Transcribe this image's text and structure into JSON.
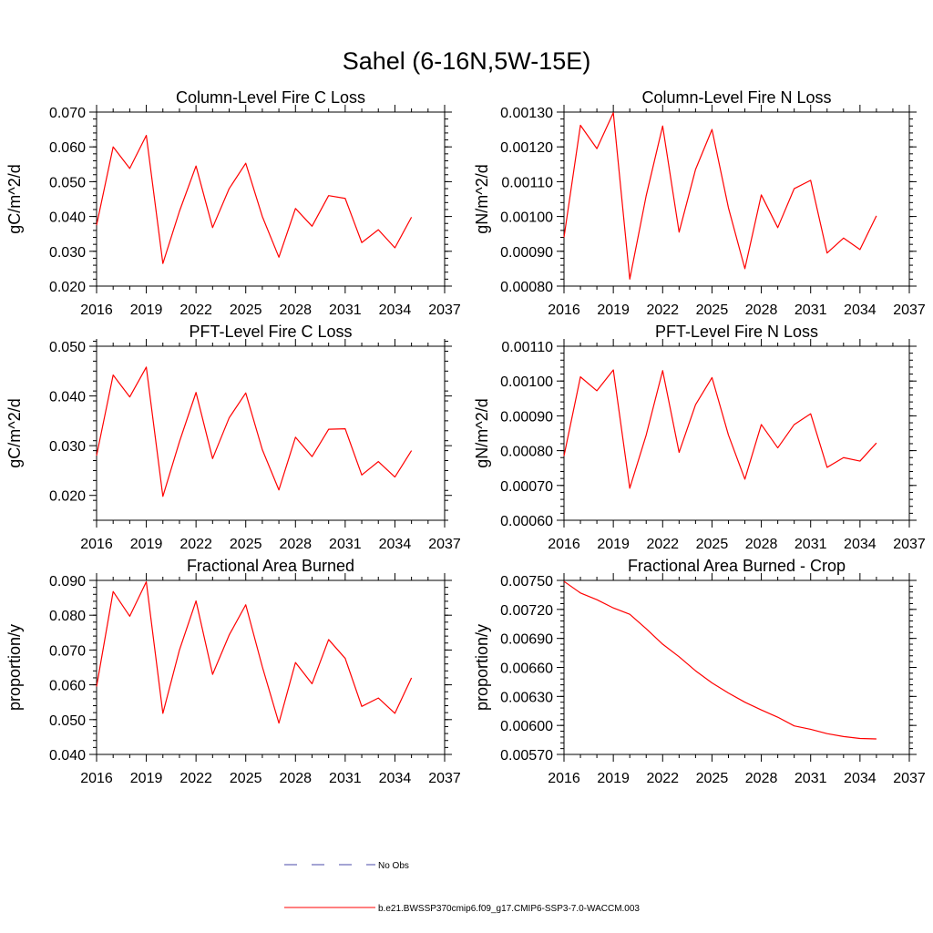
{
  "main_title": "Sahel (6-16N,5W-15E)",
  "colors": {
    "series": "#ff0000",
    "obs": "#4a4aa8",
    "axis": "#000000"
  },
  "legend": {
    "entries": [
      {
        "label": "No Obs",
        "style": "dashed",
        "color": "#4a4aa8"
      },
      {
        "label": "b.e21.BWSSP370cmip6.f09_g17.CMIP6-SSP3-7.0-WACCM.003",
        "style": "solid",
        "color": "#ff0000"
      }
    ]
  },
  "chart_data": [
    {
      "type": "line",
      "title": "Column-Level Fire C Loss",
      "ylabel": "gC/m^2/d",
      "xlim": [
        2016,
        2037
      ],
      "xticks": [
        "2016",
        "2019",
        "2022",
        "2025",
        "2028",
        "2031",
        "2034",
        "2037"
      ],
      "ylim": [
        0.02,
        0.07
      ],
      "yticks": [
        "0.020",
        "0.030",
        "0.040",
        "0.050",
        "0.060",
        "0.070"
      ],
      "x": [
        2016,
        2017,
        2018,
        2019,
        2020,
        2021,
        2022,
        2023,
        2024,
        2025,
        2026,
        2027,
        2028,
        2029,
        2030,
        2031,
        2032,
        2033,
        2034,
        2035
      ],
      "values": [
        0.0375,
        0.06,
        0.0538,
        0.0633,
        0.0265,
        0.0415,
        0.0545,
        0.0368,
        0.048,
        0.0553,
        0.04,
        0.0283,
        0.0423,
        0.0372,
        0.046,
        0.0452,
        0.0325,
        0.0362,
        0.031,
        0.0398
      ]
    },
    {
      "type": "line",
      "title": "Column-Level Fire N Loss",
      "ylabel": "gN/m^2/d",
      "xlim": [
        2016,
        2037
      ],
      "xticks": [
        "2016",
        "2019",
        "2022",
        "2025",
        "2028",
        "2031",
        "2034",
        "2037"
      ],
      "ylim": [
        0.0008,
        0.0013
      ],
      "yticks": [
        "0.00080",
        "0.00090",
        "0.00100",
        "0.00110",
        "0.00120",
        "0.00130"
      ],
      "x": [
        2016,
        2017,
        2018,
        2019,
        2020,
        2021,
        2022,
        2023,
        2024,
        2025,
        2026,
        2027,
        2028,
        2029,
        2030,
        2031,
        2032,
        2033,
        2034,
        2035
      ],
      "values": [
        0.00094,
        0.001262,
        0.001195,
        0.001298,
        0.00082,
        0.00106,
        0.00126,
        0.000955,
        0.001135,
        0.00125,
        0.001025,
        0.00085,
        0.001062,
        0.000968,
        0.00108,
        0.001104,
        0.000895,
        0.000938,
        0.000905,
        0.001002
      ]
    },
    {
      "type": "line",
      "title": "PFT-Level Fire C Loss",
      "ylabel": "gC/m^2/d",
      "xlim": [
        2016,
        2037
      ],
      "xticks": [
        "2016",
        "2019",
        "2022",
        "2025",
        "2028",
        "2031",
        "2034",
        "2037"
      ],
      "ylim": [
        0.015,
        0.05
      ],
      "yticks": [
        "0.020",
        "0.030",
        "0.040",
        "0.050"
      ],
      "x": [
        2016,
        2017,
        2018,
        2019,
        2020,
        2021,
        2022,
        2023,
        2024,
        2025,
        2026,
        2027,
        2028,
        2029,
        2030,
        2031,
        2032,
        2033,
        2034,
        2035
      ],
      "values": [
        0.028,
        0.0442,
        0.0398,
        0.0458,
        0.0198,
        0.0308,
        0.0407,
        0.0274,
        0.0356,
        0.0406,
        0.0292,
        0.0211,
        0.0317,
        0.0278,
        0.0333,
        0.0334,
        0.0241,
        0.0268,
        0.0237,
        0.029
      ]
    },
    {
      "type": "line",
      "title": "PFT-Level Fire N Loss",
      "ylabel": "gN/m^2/d",
      "xlim": [
        2016,
        2037
      ],
      "xticks": [
        "2016",
        "2019",
        "2022",
        "2025",
        "2028",
        "2031",
        "2034",
        "2037"
      ],
      "ylim": [
        0.0006,
        0.0011
      ],
      "yticks": [
        "0.00060",
        "0.00070",
        "0.00080",
        "0.00090",
        "0.00100",
        "0.00110"
      ],
      "x": [
        2016,
        2017,
        2018,
        2019,
        2020,
        2021,
        2022,
        2023,
        2024,
        2025,
        2026,
        2027,
        2028,
        2029,
        2030,
        2031,
        2032,
        2033,
        2034,
        2035
      ],
      "values": [
        0.000785,
        0.001012,
        0.000972,
        0.001032,
        0.000692,
        0.000845,
        0.00103,
        0.000795,
        0.000932,
        0.00101,
        0.000845,
        0.000718,
        0.000875,
        0.000808,
        0.000875,
        0.000906,
        0.000752,
        0.00078,
        0.00077,
        0.000822
      ]
    },
    {
      "type": "line",
      "title": "Fractional Area Burned",
      "ylabel": "proportion/y",
      "xlim": [
        2016,
        2037
      ],
      "xticks": [
        "2016",
        "2019",
        "2022",
        "2025",
        "2028",
        "2031",
        "2034",
        "2037"
      ],
      "ylim": [
        0.04,
        0.09
      ],
      "yticks": [
        "0.040",
        "0.050",
        "0.060",
        "0.070",
        "0.080",
        "0.090"
      ],
      "x": [
        2016,
        2017,
        2018,
        2019,
        2020,
        2021,
        2022,
        2023,
        2024,
        2025,
        2026,
        2027,
        2028,
        2029,
        2030,
        2031,
        2032,
        2033,
        2034,
        2035
      ],
      "values": [
        0.0595,
        0.0868,
        0.0797,
        0.0896,
        0.0518,
        0.07,
        0.0841,
        0.063,
        0.0743,
        0.083,
        0.0652,
        0.049,
        0.0664,
        0.0603,
        0.073,
        0.0676,
        0.0538,
        0.0562,
        0.0518,
        0.062
      ]
    },
    {
      "type": "line",
      "title": "Fractional Area Burned - Crop",
      "ylabel": "proportion/y",
      "xlim": [
        2016,
        2037
      ],
      "xticks": [
        "2016",
        "2019",
        "2022",
        "2025",
        "2028",
        "2031",
        "2034",
        "2037"
      ],
      "ylim": [
        0.0057,
        0.0075
      ],
      "yticks": [
        "0.00570",
        "0.00600",
        "0.00630",
        "0.00660",
        "0.00690",
        "0.00720",
        "0.00750"
      ],
      "x": [
        2016,
        2017,
        2018,
        2019,
        2020,
        2021,
        2022,
        2023,
        2024,
        2025,
        2026,
        2027,
        2028,
        2029,
        2030,
        2031,
        2032,
        2033,
        2034,
        2035
      ],
      "values": [
        0.00749,
        0.00737,
        0.0073,
        0.007215,
        0.00715,
        0.007,
        0.00684,
        0.00671,
        0.006565,
        0.00644,
        0.006335,
        0.00624,
        0.00616,
        0.006085,
        0.005995,
        0.00596,
        0.005915,
        0.005885,
        0.005865,
        0.00586
      ]
    }
  ]
}
